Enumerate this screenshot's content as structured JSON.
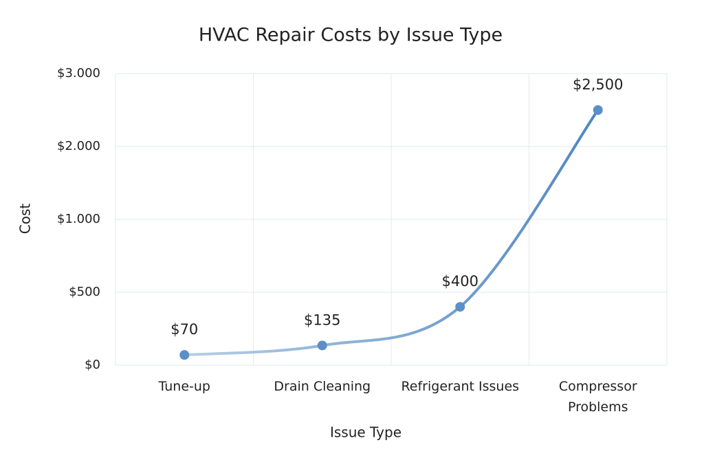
{
  "chart_data": {
    "type": "line",
    "title": "HVAC Repair Costs by Issue Type",
    "x_label": "Issue Type",
    "y_label": "Cost",
    "categories": [
      "Tune-up",
      "Drain Cleaning",
      "Refrigerant Issues",
      "Compressor Problems"
    ],
    "values": [
      70,
      135,
      400,
      2500
    ],
    "value_labels": [
      "$70",
      "$135",
      "$400",
      "$2,500"
    ],
    "color": "#5b8fc7",
    "ylim": [
      0,
      3000
    ],
    "yticks": [
      {
        "value": 0,
        "label": "$0"
      },
      {
        "value": 500,
        "label": "$500"
      },
      {
        "value": 1000,
        "label": "$1.000"
      },
      {
        "value": 2000,
        "label": "$2.000"
      },
      {
        "value": 3000,
        "label": "$3.000"
      }
    ],
    "grid": true
  }
}
